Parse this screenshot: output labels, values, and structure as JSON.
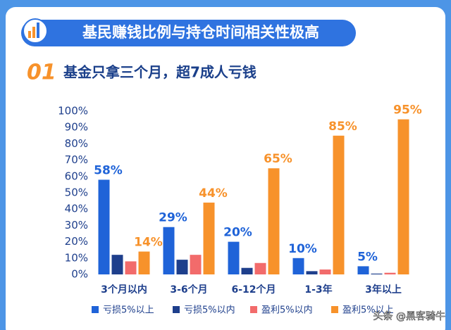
{
  "header": {
    "title": "基民赚钱比例与持仓时间相关性极高",
    "number": "01",
    "subtitle": "基金只拿三个月，超7成人亏钱"
  },
  "chart_data": {
    "type": "bar",
    "categories": [
      "3个月以内",
      "3-6个月",
      "6-12个月",
      "1-3年",
      "3年以上"
    ],
    "series": [
      {
        "name": "亏损5%以上",
        "color": "#1f63d8",
        "values": [
          58,
          29,
          20,
          10,
          5
        ],
        "value_labels": [
          "58%",
          "29%",
          "20%",
          "10%",
          "5%"
        ]
      },
      {
        "name": "亏损5%以内",
        "color": "#1e3f8c",
        "values": [
          12,
          9,
          4,
          2,
          0.5
        ]
      },
      {
        "name": "盈利5%以内",
        "color": "#f26b6b",
        "values": [
          8,
          12,
          7,
          3,
          1
        ]
      },
      {
        "name": "盈利5%以上",
        "color": "#f7922b",
        "values": [
          14,
          44,
          65,
          85,
          95
        ],
        "value_labels": [
          "14%",
          "44%",
          "65%",
          "85%",
          "95%"
        ]
      }
    ],
    "ylim": [
      0,
      100
    ],
    "yticks": [
      {
        "value": 0,
        "label": "0%"
      },
      {
        "value": 10,
        "label": "10%"
      },
      {
        "value": 20,
        "label": "20%"
      },
      {
        "value": 30,
        "label": "30%"
      },
      {
        "value": 40,
        "label": "40%"
      },
      {
        "value": 50,
        "label": "50%"
      },
      {
        "value": 60,
        "label": "60%"
      },
      {
        "value": 70,
        "label": "70%"
      },
      {
        "value": 80,
        "label": "80%"
      },
      {
        "value": 90,
        "label": "90%"
      },
      {
        "value": 100,
        "label": "100%"
      }
    ],
    "grid": false
  },
  "watermark": "头条 @黑客骑牛"
}
